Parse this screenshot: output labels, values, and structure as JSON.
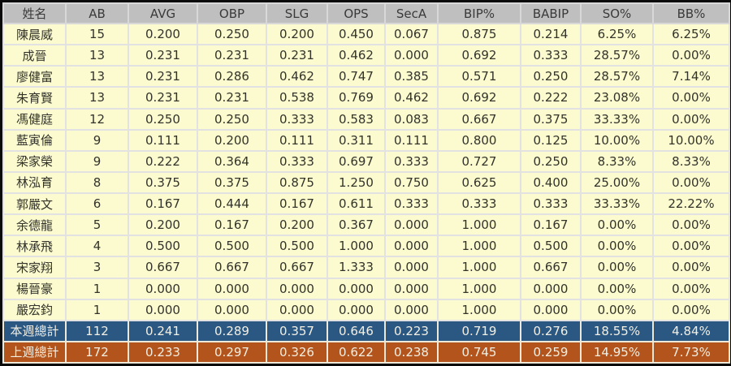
{
  "colors": {
    "outer_border": "#0A0A0A",
    "header_bg": "#BFBFBF",
    "header_text": "#3A3A3A",
    "row_bg": "#FBFBCF",
    "data_text": "#33332B",
    "grid_line": "#E2E2E2",
    "total_this_week_bg": "#2B5883",
    "total_last_week_bg": "#B2541B",
    "total_text": "#F3EFE3"
  },
  "chart_data": {
    "type": "table",
    "columns": [
      "姓名",
      "AB",
      "AVG",
      "OBP",
      "SLG",
      "OPS",
      "SecA",
      "BIP%",
      "BABIP",
      "SO%",
      "BB%"
    ],
    "rows": [
      [
        "陳晨威",
        "15",
        "0.200",
        "0.250",
        "0.200",
        "0.450",
        "0.067",
        "0.875",
        "0.214",
        "6.25%",
        "6.25%"
      ],
      [
        "成晉",
        "13",
        "0.231",
        "0.231",
        "0.231",
        "0.462",
        "0.000",
        "0.692",
        "0.333",
        "28.57%",
        "0.00%"
      ],
      [
        "廖健富",
        "13",
        "0.231",
        "0.286",
        "0.462",
        "0.747",
        "0.385",
        "0.571",
        "0.250",
        "28.57%",
        "7.14%"
      ],
      [
        "朱育賢",
        "13",
        "0.231",
        "0.231",
        "0.538",
        "0.769",
        "0.462",
        "0.692",
        "0.222",
        "23.08%",
        "0.00%"
      ],
      [
        "馮健庭",
        "12",
        "0.250",
        "0.250",
        "0.333",
        "0.583",
        "0.083",
        "0.667",
        "0.375",
        "33.33%",
        "0.00%"
      ],
      [
        "藍寅倫",
        "9",
        "0.111",
        "0.200",
        "0.111",
        "0.311",
        "0.111",
        "0.800",
        "0.125",
        "10.00%",
        "10.00%"
      ],
      [
        "梁家榮",
        "9",
        "0.222",
        "0.364",
        "0.333",
        "0.697",
        "0.333",
        "0.727",
        "0.250",
        "8.33%",
        "8.33%"
      ],
      [
        "林泓育",
        "8",
        "0.375",
        "0.375",
        "0.875",
        "1.250",
        "0.750",
        "0.625",
        "0.400",
        "25.00%",
        "0.00%"
      ],
      [
        "郭嚴文",
        "6",
        "0.167",
        "0.444",
        "0.167",
        "0.611",
        "0.333",
        "0.333",
        "0.333",
        "33.33%",
        "22.22%"
      ],
      [
        "余德龍",
        "5",
        "0.200",
        "0.167",
        "0.200",
        "0.367",
        "0.000",
        "1.000",
        "0.167",
        "0.00%",
        "0.00%"
      ],
      [
        "林承飛",
        "4",
        "0.500",
        "0.500",
        "0.500",
        "1.000",
        "0.000",
        "1.000",
        "0.500",
        "0.00%",
        "0.00%"
      ],
      [
        "宋家翔",
        "3",
        "0.667",
        "0.667",
        "0.667",
        "1.333",
        "0.000",
        "1.000",
        "0.667",
        "0.00%",
        "0.00%"
      ],
      [
        "楊晉豪",
        "1",
        "0.000",
        "0.000",
        "0.000",
        "0.000",
        "0.000",
        "1.000",
        "0.000",
        "0.00%",
        "0.00%"
      ],
      [
        "嚴宏鈞",
        "1",
        "0.000",
        "0.000",
        "0.000",
        "0.000",
        "0.000",
        "1.000",
        "0.000",
        "0.00%",
        "0.00%"
      ]
    ],
    "total_rows": [
      {
        "label": "本週總計",
        "values": [
          "112",
          "0.241",
          "0.289",
          "0.357",
          "0.646",
          "0.223",
          "0.719",
          "0.276",
          "18.55%",
          "4.84%"
        ],
        "style": "total-this"
      },
      {
        "label": "上週總計",
        "values": [
          "172",
          "0.233",
          "0.297",
          "0.326",
          "0.622",
          "0.238",
          "0.745",
          "0.259",
          "14.95%",
          "7.73%"
        ],
        "style": "total-last"
      }
    ]
  }
}
